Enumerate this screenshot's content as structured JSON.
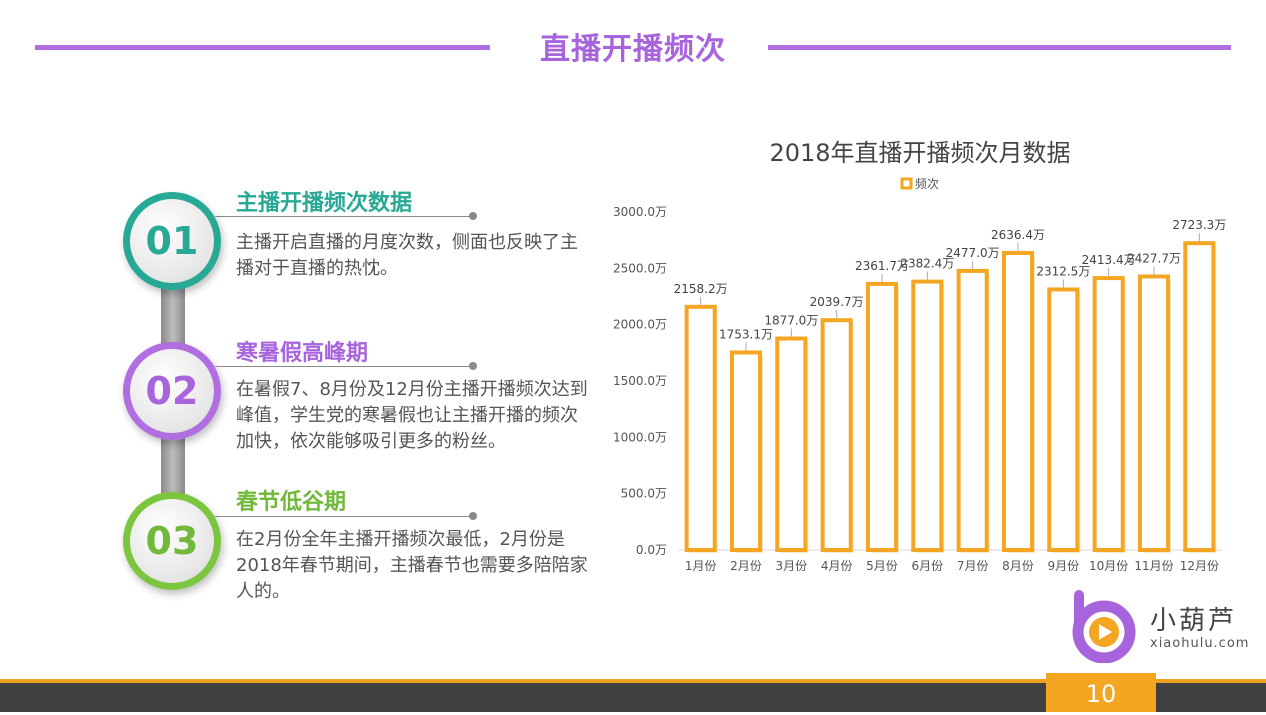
{
  "header": {
    "title": "直播开播频次"
  },
  "steps": [
    {
      "num": "01",
      "title": "主播开播频次数据",
      "body_lines": [
        "主播开启直播的月度次数，侧面也反映了主",
        "播对于直播的热忱。"
      ]
    },
    {
      "num": "02",
      "title": "寒暑假高峰期",
      "body_lines": [
        "在暑假7、8月份及12月份主播开播频次达到",
        "峰值，学生党的寒暑假也让主播开播的频次",
        "加快，依次能够吸引更多的粉丝。"
      ]
    },
    {
      "num": "03",
      "title": "春节低谷期",
      "body_lines": [
        "在2月份全年主播开播频次最低，2月份是",
        "2018年春节期间，主播春节也需要多陪陪家",
        "人的。"
      ]
    }
  ],
  "chart_data": {
    "type": "bar",
    "title": "2018年直播开播频次月数据",
    "legend": {
      "entries": [
        "频次"
      ],
      "position": "top-center"
    },
    "categories": [
      "1月份",
      "2月份",
      "3月份",
      "4月份",
      "5月份",
      "6月份",
      "7月份",
      "8月份",
      "9月份",
      "10月份",
      "11月份",
      "12月份"
    ],
    "series": [
      {
        "name": "频次",
        "values": [
          2158.2,
          1753.1,
          1877.0,
          2039.7,
          2361.7,
          2382.4,
          2477.0,
          2636.4,
          2312.5,
          2413.4,
          2427.7,
          2723.3
        ]
      }
    ],
    "data_labels": [
      "2158.2万",
      "1753.1万",
      "1877.0万",
      "2039.7万",
      "2361.7万",
      "2382.4万",
      "2477.0万",
      "2636.4万",
      "2312.5万",
      "2413.4万",
      "2427.7万",
      "2723.3万"
    ],
    "y_ticks": [
      0,
      500,
      1000,
      1500,
      2000,
      2500,
      3000
    ],
    "y_tick_labels": [
      "0.0万",
      "500.0万",
      "1000.0万",
      "1500.0万",
      "2000.0万",
      "2500.0万",
      "3000.0万"
    ],
    "ylim": [
      0,
      3000
    ],
    "grid": false,
    "bar_color": "#f4a623"
  },
  "logo": {
    "name": "小葫芦",
    "site": "xiaohulu.com"
  },
  "footer": {
    "page_number": "10"
  },
  "colors": {
    "accent": "#a864dc",
    "teal": "#27a996",
    "green": "#72b83a",
    "orange": "#f4a623"
  }
}
